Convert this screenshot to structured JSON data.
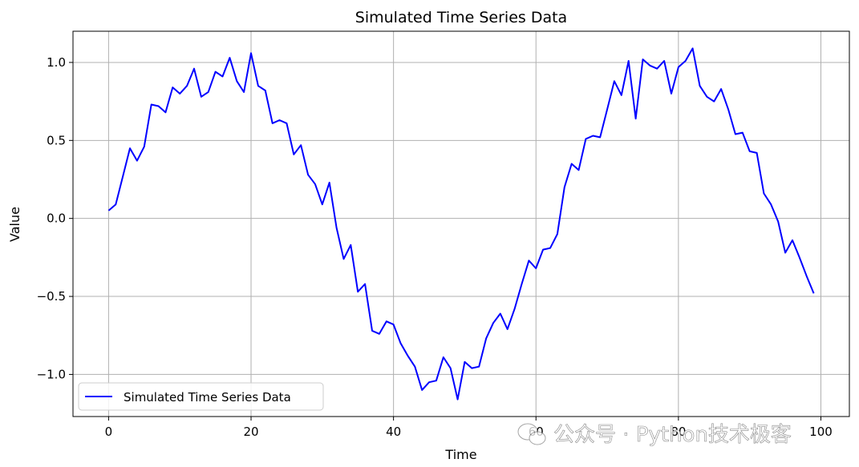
{
  "chart_data": {
    "type": "line",
    "title": "Simulated Time Series Data",
    "xlabel": "Time",
    "ylabel": "Value",
    "xlim": [
      -5,
      104
    ],
    "ylim": [
      -1.27,
      1.2
    ],
    "x_ticks": [
      0,
      20,
      40,
      60,
      80,
      100
    ],
    "x_tick_labels": [
      "0",
      "20",
      "40",
      "60",
      "80",
      "100"
    ],
    "y_ticks": [
      -1.0,
      -0.5,
      0.0,
      0.5,
      1.0
    ],
    "y_tick_labels": [
      "−1.0",
      "−0.5",
      "0.0",
      "0.5",
      "1.0"
    ],
    "grid": true,
    "legend_position": "lower-left",
    "series": [
      {
        "name": "Simulated Time Series Data",
        "color": "#0000ff",
        "x": [
          0,
          1,
          2,
          3,
          4,
          5,
          6,
          7,
          8,
          9,
          10,
          11,
          12,
          13,
          14,
          15,
          16,
          17,
          18,
          19,
          20,
          21,
          22,
          23,
          24,
          25,
          26,
          27,
          28,
          29,
          30,
          31,
          32,
          33,
          34,
          35,
          36,
          37,
          38,
          39,
          40,
          41,
          42,
          43,
          44,
          45,
          46,
          47,
          48,
          49,
          50,
          51,
          52,
          53,
          54,
          55,
          56,
          57,
          58,
          59,
          60,
          61,
          62,
          63,
          64,
          65,
          66,
          67,
          68,
          69,
          70,
          71,
          72,
          73,
          74,
          75,
          76,
          77,
          78,
          79,
          80,
          81,
          82,
          83,
          84,
          85,
          86,
          87,
          88,
          89,
          90,
          91,
          92,
          93,
          94,
          95,
          96,
          97,
          98,
          99
        ],
        "values": [
          0.05,
          0.09,
          0.27,
          0.45,
          0.37,
          0.46,
          0.73,
          0.72,
          0.68,
          0.84,
          0.8,
          0.85,
          0.96,
          0.78,
          0.81,
          0.94,
          0.91,
          1.03,
          0.88,
          0.81,
          1.06,
          0.85,
          0.82,
          0.61,
          0.63,
          0.61,
          0.41,
          0.47,
          0.28,
          0.22,
          0.09,
          0.23,
          -0.06,
          -0.26,
          -0.17,
          -0.47,
          -0.42,
          -0.72,
          -0.74,
          -0.66,
          -0.68,
          -0.8,
          -0.88,
          -0.95,
          -1.1,
          -1.05,
          -1.04,
          -0.89,
          -0.96,
          -1.16,
          -0.92,
          -0.96,
          -0.95,
          -0.77,
          -0.67,
          -0.61,
          -0.71,
          -0.58,
          -0.42,
          -0.27,
          -0.32,
          -0.2,
          -0.19,
          -0.1,
          0.2,
          0.35,
          0.31,
          0.51,
          0.53,
          0.52,
          0.7,
          0.88,
          0.79,
          1.01,
          0.64,
          1.02,
          0.98,
          0.96,
          1.01,
          0.8,
          0.97,
          1.01,
          1.09,
          0.85,
          0.78,
          0.75,
          0.83,
          0.7,
          0.54,
          0.55,
          0.43,
          0.42,
          0.16,
          0.09,
          -0.02,
          -0.22,
          -0.14,
          -0.25,
          -0.37,
          -0.48
        ]
      }
    ]
  },
  "watermark": {
    "text": "公众号 · Python技术极客",
    "icon": "wechat-icon"
  }
}
